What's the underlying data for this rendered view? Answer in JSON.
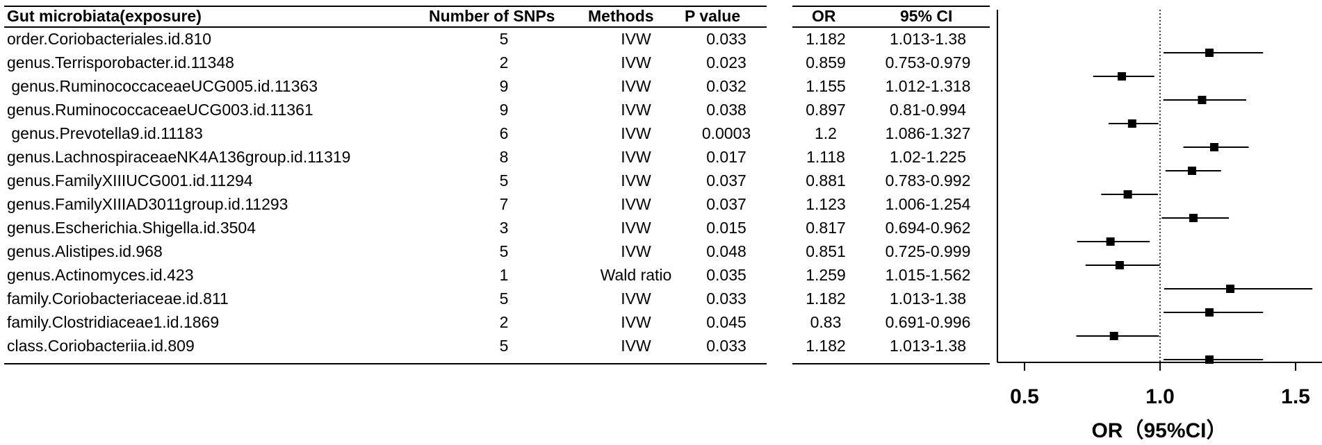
{
  "headers": {
    "exposure": "Gut microbiata(exposure)",
    "snps": "Number of SNPs",
    "methods": "Methods",
    "p": "P value",
    "or": "OR",
    "ci": "95% CI"
  },
  "rows": [
    {
      "exposure": "order.Coriobacteriales.id.810",
      "snps": "5",
      "method": "IVW",
      "p": "0.033",
      "or": "1.182",
      "ci": "1.013-1.38"
    },
    {
      "exposure": "genus.Terrisporobacter.id.11348",
      "snps": "2",
      "method": "IVW",
      "p": "0.023",
      "or": "0.859",
      "ci": "0.753-0.979"
    },
    {
      "exposure": " genus.RuminococcaceaeUCG005.id.11363",
      "snps": "9",
      "method": "IVW",
      "p": "0.032",
      "or": "1.155",
      "ci": "1.012-1.318"
    },
    {
      "exposure": "genus.RuminococcaceaeUCG003.id.11361",
      "snps": "9",
      "method": "IVW",
      "p": "0.038",
      "or": "0.897",
      "ci": "0.81-0.994"
    },
    {
      "exposure": " genus.Prevotella9.id.11183",
      "snps": "6",
      "method": "IVW",
      "p": "0.0003",
      "or": "1.2",
      "ci": "1.086-1.327"
    },
    {
      "exposure": "genus.LachnospiraceaeNK4A136group.id.11319",
      "snps": "8",
      "method": "IVW",
      "p": "0.017",
      "or": "1.118",
      "ci": "1.02-1.225"
    },
    {
      "exposure": "genus.FamilyXIIIUCG001.id.11294",
      "snps": "5",
      "method": "IVW",
      "p": "0.037",
      "or": "0.881",
      "ci": "0.783-0.992"
    },
    {
      "exposure": "genus.FamilyXIIIAD3011group.id.11293",
      "snps": "7",
      "method": "IVW",
      "p": "0.037",
      "or": "1.123",
      "ci": "1.006-1.254"
    },
    {
      "exposure": "genus.Escherichia.Shigella.id.3504",
      "snps": "3",
      "method": "IVW",
      "p": "0.015",
      "or": "0.817",
      "ci": "0.694-0.962"
    },
    {
      "exposure": "genus.Alistipes.id.968",
      "snps": "5",
      "method": "IVW",
      "p": "0.048",
      "or": "0.851",
      "ci": "0.725-0.999"
    },
    {
      "exposure": "genus.Actinomyces.id.423",
      "snps": "1",
      "method": "Wald ratio",
      "p": "0.035",
      "or": "1.259",
      "ci": "1.015-1.562"
    },
    {
      "exposure": "family.Coriobacteriaceae.id.811",
      "snps": "5",
      "method": "IVW",
      "p": "0.033",
      "or": "1.182",
      "ci": "1.013-1.38"
    },
    {
      "exposure": "family.Clostridiaceae1.id.1869",
      "snps": "2",
      "method": "IVW",
      "p": "0.045",
      "or": "0.83",
      "ci": "0.691-0.996"
    },
    {
      "exposure": "class.Coriobacteriia.id.809",
      "snps": "5",
      "method": "IVW",
      "p": "0.033",
      "or": "1.182",
      "ci": "1.013-1.38"
    }
  ],
  "chart_data": {
    "type": "scatter",
    "xlabel": "OR（95%CI）",
    "xlim": [
      0.5,
      1.5
    ],
    "xticks": [
      "0.5",
      "1.0",
      "1.5"
    ],
    "reference_line": 1.0,
    "points": [
      {
        "or": 1.182,
        "lo": 1.013,
        "hi": 1.38
      },
      {
        "or": 0.859,
        "lo": 0.753,
        "hi": 0.979
      },
      {
        "or": 1.155,
        "lo": 1.012,
        "hi": 1.318
      },
      {
        "or": 0.897,
        "lo": 0.81,
        "hi": 0.994
      },
      {
        "or": 1.2,
        "lo": 1.086,
        "hi": 1.327
      },
      {
        "or": 1.118,
        "lo": 1.02,
        "hi": 1.225
      },
      {
        "or": 0.881,
        "lo": 0.783,
        "hi": 0.992
      },
      {
        "or": 1.123,
        "lo": 1.006,
        "hi": 1.254
      },
      {
        "or": 0.817,
        "lo": 0.694,
        "hi": 0.962
      },
      {
        "or": 0.851,
        "lo": 0.725,
        "hi": 0.999
      },
      {
        "or": 1.259,
        "lo": 1.015,
        "hi": 1.562
      },
      {
        "or": 1.182,
        "lo": 1.013,
        "hi": 1.38
      },
      {
        "or": 0.83,
        "lo": 0.691,
        "hi": 0.996
      },
      {
        "or": 1.182,
        "lo": 1.013,
        "hi": 1.38
      }
    ]
  }
}
